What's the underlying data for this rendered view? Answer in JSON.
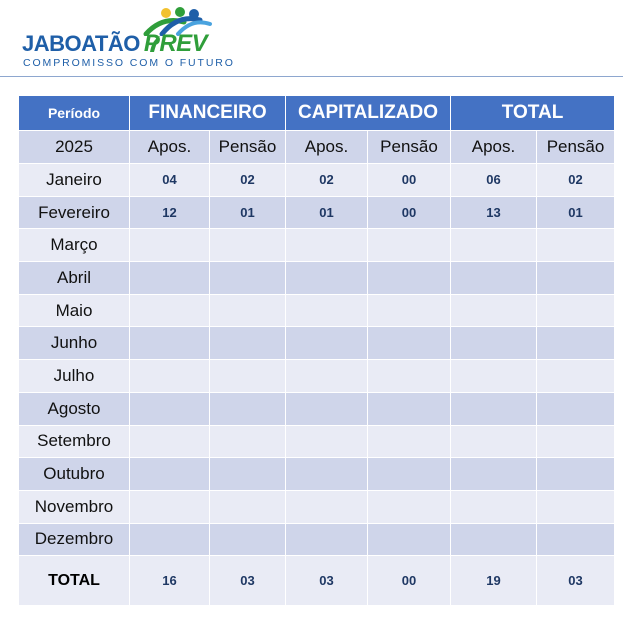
{
  "logo": {
    "brand": "JABOATÃO",
    "suffix": "PREV",
    "tagline": "COMPROMISSO COM O FUTURO"
  },
  "table": {
    "period_header": "Período",
    "groups": [
      "FINANCEIRO",
      "CAPITALIZADO",
      "TOTAL"
    ],
    "year": "2025",
    "subheaders": [
      "Apos.",
      "Pensão",
      "Apos.",
      "Pensão",
      "Apos.",
      "Pensão"
    ],
    "rows": [
      {
        "month": "Janeiro",
        "values": [
          "04",
          "02",
          "02",
          "00",
          "06",
          "02"
        ]
      },
      {
        "month": "Fevereiro",
        "values": [
          "12",
          "01",
          "01",
          "00",
          "13",
          "01"
        ]
      },
      {
        "month": "Março",
        "values": [
          "",
          "",
          "",
          "",
          "",
          ""
        ]
      },
      {
        "month": "Abril",
        "values": [
          "",
          "",
          "",
          "",
          "",
          ""
        ]
      },
      {
        "month": "Maio",
        "values": [
          "",
          "",
          "",
          "",
          "",
          ""
        ]
      },
      {
        "month": "Junho",
        "values": [
          "",
          "",
          "",
          "",
          "",
          ""
        ]
      },
      {
        "month": "Julho",
        "values": [
          "",
          "",
          "",
          "",
          "",
          ""
        ]
      },
      {
        "month": "Agosto",
        "values": [
          "",
          "",
          "",
          "",
          "",
          ""
        ]
      },
      {
        "month": "Setembro",
        "values": [
          "",
          "",
          "",
          "",
          "",
          ""
        ]
      },
      {
        "month": "Outubro",
        "values": [
          "",
          "",
          "",
          "",
          "",
          ""
        ]
      },
      {
        "month": "Novembro",
        "values": [
          "",
          "",
          "",
          "",
          "",
          ""
        ]
      },
      {
        "month": "Dezembro",
        "values": [
          "",
          "",
          "",
          "",
          "",
          ""
        ]
      }
    ],
    "total": {
      "label": "TOTAL",
      "values": [
        "16",
        "03",
        "03",
        "00",
        "19",
        "03"
      ]
    }
  },
  "colors": {
    "header_blue": "#4472c4",
    "row_light": "#e9ebf5",
    "row_dark": "#cfd5ea",
    "brand_blue": "#1f5fa8",
    "brand_green": "#2f9e3a",
    "brand_yellow": "#f2c12e"
  }
}
